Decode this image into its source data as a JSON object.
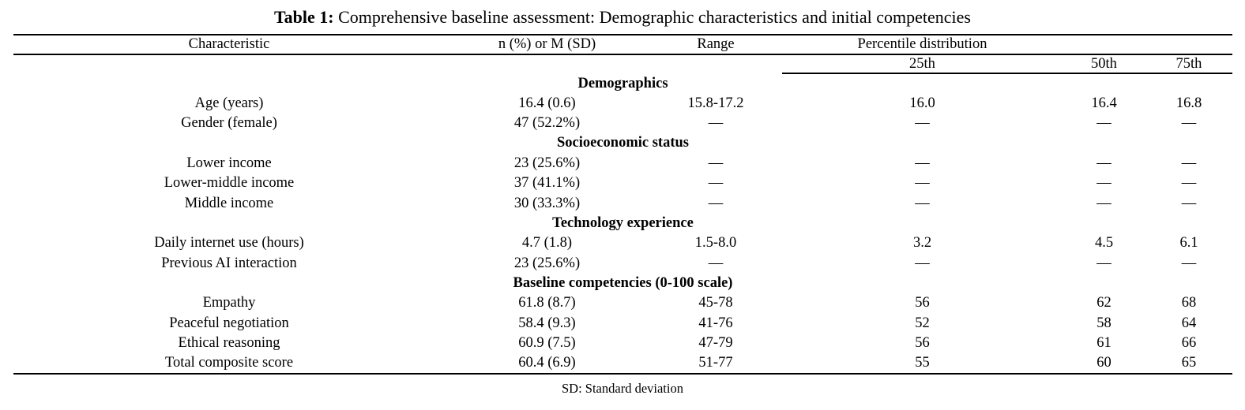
{
  "caption": {
    "label": "Table 1:",
    "text": " Comprehensive baseline assessment: Demographic characteristics and initial competencies"
  },
  "table": {
    "headers": {
      "characteristic": "Characteristic",
      "n_or_m": "n (%) or M (SD)",
      "range": "Range",
      "percentile_group": "Percentile distribution",
      "p25": "25th",
      "p50": "50th",
      "p75": "75th"
    },
    "rows": [
      {
        "type": "section",
        "label": "Demographics"
      },
      {
        "type": "data",
        "cells": [
          "Age (years)",
          "16.4 (0.6)",
          "15.8-17.2",
          "16.0",
          "16.4",
          "16.8"
        ]
      },
      {
        "type": "data",
        "cells": [
          "Gender (female)",
          "47 (52.2%)",
          "—",
          "—",
          "—",
          "—"
        ]
      },
      {
        "type": "section",
        "label": "Socioeconomic status"
      },
      {
        "type": "data",
        "cells": [
          "Lower income",
          "23 (25.6%)",
          "—",
          "—",
          "—",
          "—"
        ]
      },
      {
        "type": "data",
        "cells": [
          "Lower-middle income",
          "37 (41.1%)",
          "—",
          "—",
          "—",
          "—"
        ]
      },
      {
        "type": "data",
        "cells": [
          "Middle income",
          "30 (33.3%)",
          "—",
          "—",
          "—",
          "—"
        ]
      },
      {
        "type": "section",
        "label": "Technology experience"
      },
      {
        "type": "data",
        "cells": [
          "Daily internet use (hours)",
          "4.7 (1.8)",
          "1.5-8.0",
          "3.2",
          "4.5",
          "6.1"
        ]
      },
      {
        "type": "data",
        "cells": [
          "Previous AI interaction",
          "23 (25.6%)",
          "—",
          "—",
          "—",
          "—"
        ]
      },
      {
        "type": "section",
        "label": "Baseline competencies (0-100 scale)"
      },
      {
        "type": "data",
        "cells": [
          "Empathy",
          "61.8 (8.7)",
          "45-78",
          "56",
          "62",
          "68"
        ]
      },
      {
        "type": "data",
        "cells": [
          "Peaceful negotiation",
          "58.4 (9.3)",
          "41-76",
          "52",
          "58",
          "64"
        ]
      },
      {
        "type": "data",
        "cells": [
          "Ethical reasoning",
          "60.9 (7.5)",
          "47-79",
          "56",
          "61",
          "66"
        ]
      },
      {
        "type": "data",
        "cells": [
          "Total composite score",
          "60.4 (6.9)",
          "51-77",
          "55",
          "60",
          "65"
        ]
      }
    ]
  },
  "footnote": "SD: Standard deviation",
  "colors": {
    "text": "#000000",
    "background": "#ffffff",
    "rule": "#000000"
  }
}
